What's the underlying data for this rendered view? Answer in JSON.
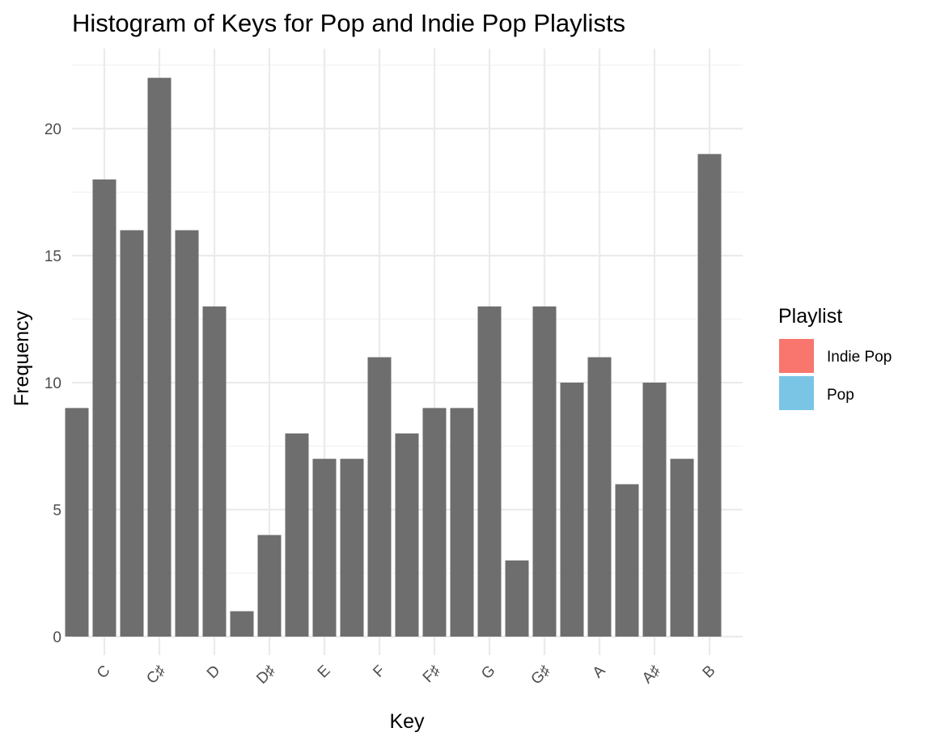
{
  "chart_data": {
    "type": "bar",
    "title": "Histogram of Keys for Pop and Indie Pop Playlists",
    "xlabel": "Key",
    "ylabel": "Frequency",
    "categories": [
      "C",
      "C♯",
      "D",
      "D♯",
      "E",
      "F",
      "F♯",
      "G",
      "G♯",
      "A",
      "A♯",
      "B"
    ],
    "bars": [
      {
        "x": 0.5,
        "value": 9
      },
      {
        "x": 1.0,
        "value": 18
      },
      {
        "x": 1.5,
        "value": 16
      },
      {
        "x": 2.0,
        "value": 22
      },
      {
        "x": 2.5,
        "value": 16
      },
      {
        "x": 3.0,
        "value": 13
      },
      {
        "x": 3.5,
        "value": 1
      },
      {
        "x": 4.0,
        "value": 4
      },
      {
        "x": 4.5,
        "value": 8
      },
      {
        "x": 5.0,
        "value": 7
      },
      {
        "x": 5.5,
        "value": 7
      },
      {
        "x": 6.0,
        "value": 11
      },
      {
        "x": 6.5,
        "value": 8
      },
      {
        "x": 7.0,
        "value": 9
      },
      {
        "x": 7.5,
        "value": 9
      },
      {
        "x": 8.0,
        "value": 13
      },
      {
        "x": 8.5,
        "value": 3
      },
      {
        "x": 9.0,
        "value": 13
      },
      {
        "x": 9.5,
        "value": 10
      },
      {
        "x": 10.0,
        "value": 11
      },
      {
        "x": 10.5,
        "value": 6
      },
      {
        "x": 11.0,
        "value": 10
      },
      {
        "x": 11.5,
        "value": 7
      },
      {
        "x": 12.0,
        "value": 19
      }
    ],
    "bar_color": "#6e6e6e",
    "yticks": [
      0,
      5,
      10,
      15,
      20
    ],
    "ylim": [
      0,
      22
    ],
    "grid": true,
    "legend": {
      "title": "Playlist",
      "position": "right",
      "entries": [
        {
          "name": "Indie Pop",
          "color": "#f8766d"
        },
        {
          "name": "Pop",
          "color": "#7ac5e6"
        }
      ]
    }
  }
}
